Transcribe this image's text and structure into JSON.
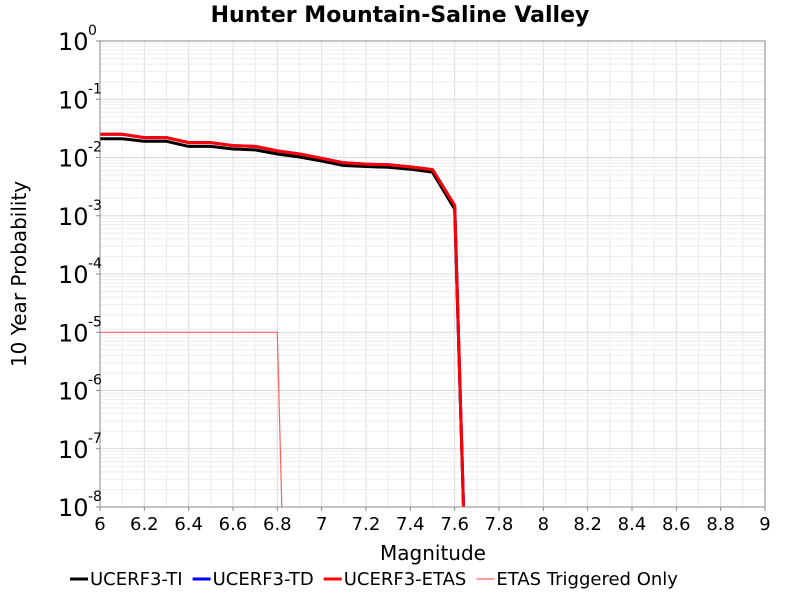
{
  "chart_data": {
    "type": "line",
    "title": "Hunter Mountain-Saline Valley",
    "xlabel": "Magnitude",
    "ylabel": "10 Year Probability",
    "xlim": [
      6,
      9
    ],
    "ylim": [
      1e-08,
      1
    ],
    "yscale": "log",
    "grid": true,
    "legend_position": "bottom",
    "xticks": [
      "6",
      "6.2",
      "6.4",
      "6.6",
      "6.8",
      "7",
      "7.2",
      "7.4",
      "7.6",
      "7.8",
      "8",
      "8.2",
      "8.4",
      "8.6",
      "8.8",
      "9"
    ],
    "yticks": [
      {
        "base": "10",
        "exp": "0"
      },
      {
        "base": "10",
        "exp": "-1"
      },
      {
        "base": "10",
        "exp": "-2"
      },
      {
        "base": "10",
        "exp": "-3"
      },
      {
        "base": "10",
        "exp": "-4"
      },
      {
        "base": "10",
        "exp": "-5"
      },
      {
        "base": "10",
        "exp": "-6"
      },
      {
        "base": "10",
        "exp": "-7"
      },
      {
        "base": "10",
        "exp": "-8"
      }
    ],
    "series": [
      {
        "name": "UCERF3-TI",
        "color": "#000000",
        "x": [
          6.0,
          6.1,
          6.2,
          6.3,
          6.4,
          6.5,
          6.6,
          6.7,
          6.8,
          6.9,
          7.0,
          7.1,
          7.2,
          7.3,
          7.4,
          7.5,
          7.6,
          7.64
        ],
        "y": [
          0.021,
          0.021,
          0.019,
          0.019,
          0.0155,
          0.0155,
          0.014,
          0.0135,
          0.0115,
          0.0102,
          0.0087,
          0.0073,
          0.007,
          0.0068,
          0.0063,
          0.0056,
          0.0013,
          1e-08
        ]
      },
      {
        "name": "UCERF3-TD",
        "color": "#0000ff",
        "x": [
          6.0,
          6.1,
          6.2,
          6.3,
          6.4,
          6.5,
          6.6,
          6.7,
          6.8,
          6.9,
          7.0,
          7.1,
          7.2,
          7.3,
          7.4,
          7.5,
          7.6,
          7.64
        ],
        "y": [
          0.025,
          0.025,
          0.022,
          0.022,
          0.018,
          0.018,
          0.016,
          0.0155,
          0.013,
          0.0115,
          0.0097,
          0.0081,
          0.0077,
          0.0075,
          0.0069,
          0.0062,
          0.0015,
          1e-08
        ]
      },
      {
        "name": "UCERF3-ETAS",
        "color": "#ff0000",
        "x": [
          6.0,
          6.1,
          6.2,
          6.3,
          6.4,
          6.5,
          6.6,
          6.7,
          6.8,
          6.9,
          7.0,
          7.1,
          7.2,
          7.3,
          7.4,
          7.5,
          7.6,
          7.64
        ],
        "y": [
          0.025,
          0.025,
          0.022,
          0.022,
          0.018,
          0.018,
          0.016,
          0.0155,
          0.013,
          0.0115,
          0.0097,
          0.0081,
          0.0077,
          0.0075,
          0.0069,
          0.0062,
          0.0015,
          1e-08
        ]
      },
      {
        "name": "ETAS Triggered Only",
        "color": "#ff6060",
        "x": [
          6.0,
          6.8,
          6.82
        ],
        "y": [
          1e-05,
          1e-05,
          1e-08
        ]
      }
    ]
  }
}
